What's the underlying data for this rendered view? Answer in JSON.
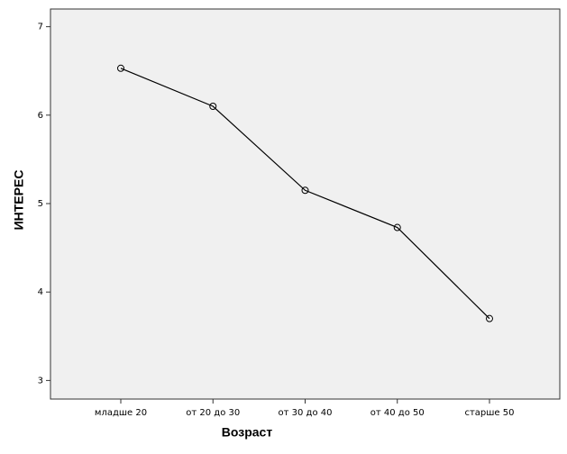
{
  "chart_data": {
    "type": "line",
    "x_label": "Возраст",
    "y_label": "ИНТЕРЕС",
    "categories": [
      "младше 20",
      "от 20 до 30",
      "от 30 до 40",
      "от 40 до 50",
      "старше 50"
    ],
    "values": [
      6.53,
      6.1,
      5.15,
      4.73,
      3.7
    ],
    "color": "#000000",
    "ylim": [
      2.79,
      7.2
    ],
    "yticks": [
      3,
      4,
      5,
      6,
      7
    ],
    "background": "#f0f0f0"
  }
}
